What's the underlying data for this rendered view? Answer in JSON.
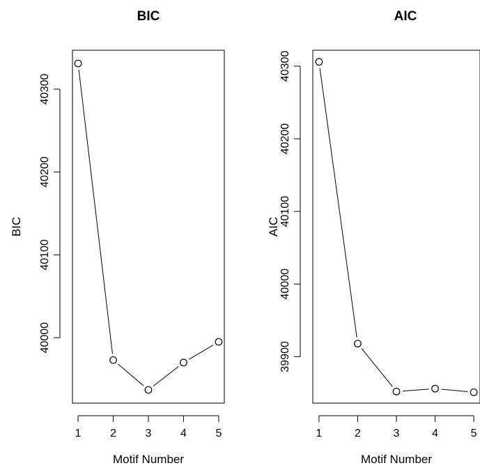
{
  "chart_data": [
    {
      "type": "line",
      "title": "BIC",
      "xlabel": "Motif Number",
      "ylabel": "BIC",
      "x": [
        1,
        2,
        3,
        4,
        5
      ],
      "series": [
        {
          "values": [
            40331,
            39973,
            39937,
            39970,
            39995
          ]
        }
      ],
      "xticks": [
        1,
        2,
        3,
        4,
        5
      ],
      "yticks": [
        40000,
        40100,
        40200,
        40300
      ],
      "xtick_labels": [
        "1",
        "2",
        "3",
        "4",
        "5"
      ],
      "ytick_labels": [
        "40000",
        "40100",
        "40200",
        "40300"
      ],
      "xlim": [
        0.84,
        5.16
      ],
      "ylim": [
        39921,
        40347
      ],
      "grid": false,
      "marker": "open-circle"
    },
    {
      "type": "line",
      "title": "AIC",
      "xlabel": "Motif Number",
      "ylabel": "AIC",
      "x": [
        1,
        2,
        3,
        4,
        5
      ],
      "series": [
        {
          "values": [
            40306,
            39918,
            39852,
            39856,
            39851
          ]
        }
      ],
      "xticks": [
        1,
        2,
        3,
        4,
        5
      ],
      "yticks": [
        39900,
        40000,
        40100,
        40200,
        40300
      ],
      "xtick_labels": [
        "1",
        "2",
        "3",
        "4",
        "5"
      ],
      "ytick_labels": [
        "39900",
        "40000",
        "40100",
        "40200",
        "40300"
      ],
      "xlim": [
        0.84,
        5.16
      ],
      "ylim": [
        39836,
        40322
      ],
      "grid": false,
      "marker": "open-circle"
    }
  ]
}
